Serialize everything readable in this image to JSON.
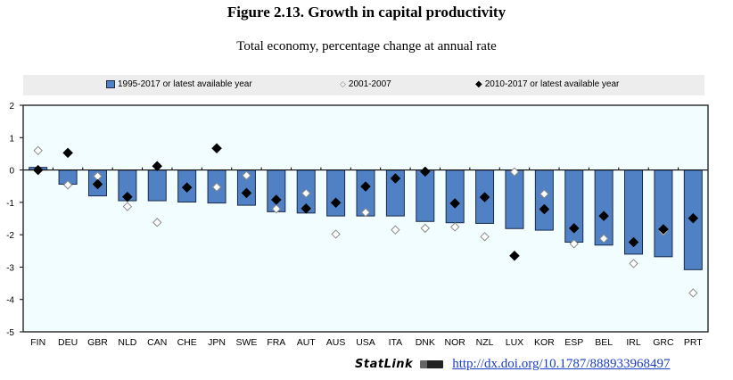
{
  "chart_data": {
    "type": "bar",
    "title": "Figure 2.13. Growth in capital productivity",
    "subtitle": "Total economy, percentage change at annual rate",
    "xlabel": "",
    "ylabel": "",
    "ylim": [
      -5,
      2
    ],
    "yticks": [
      2,
      1,
      0,
      -1,
      -2,
      -3,
      -4,
      -5
    ],
    "grid": false,
    "legend_position": "top",
    "categories": [
      "FIN",
      "DEU",
      "GBR",
      "NLD",
      "CAN",
      "CHE",
      "JPN",
      "SWE",
      "FRA",
      "AUT",
      "AUS",
      "USA",
      "ITA",
      "DNK",
      "NOR",
      "NZL",
      "LUX",
      "KOR",
      "ESP",
      "BEL",
      "IRL",
      "GRC",
      "PRT"
    ],
    "series": [
      {
        "name": "1995-2017 or latest available year",
        "kind": "bar",
        "color": "#4f81c4",
        "values": [
          0.08,
          -0.44,
          -0.8,
          -0.95,
          -0.95,
          -0.99,
          -1.02,
          -1.09,
          -1.29,
          -1.33,
          -1.42,
          -1.42,
          -1.42,
          -1.59,
          -1.63,
          -1.65,
          -1.81,
          -1.86,
          -2.23,
          -2.32,
          -2.6,
          -2.68,
          -3.08
        ]
      },
      {
        "name": "2001-2007",
        "kind": "open-diamond",
        "color": "#ffffff",
        "values": [
          0.6,
          -0.46,
          -0.19,
          -1.13,
          -1.62,
          null,
          -0.53,
          -0.17,
          -1.2,
          -0.72,
          -1.98,
          -1.31,
          -1.85,
          -1.8,
          -1.76,
          -2.06,
          -0.06,
          -0.74,
          -2.28,
          -2.12,
          -2.89,
          -1.9,
          -3.8
        ]
      },
      {
        "name": "2010-2017 or latest available year",
        "kind": "filled-diamond",
        "color": "#000000",
        "values": [
          0.0,
          0.53,
          -0.44,
          -0.83,
          0.12,
          -0.54,
          0.67,
          -0.71,
          -0.92,
          -1.19,
          -1.01,
          -0.51,
          -0.26,
          -0.05,
          -1.03,
          -0.84,
          -2.65,
          -1.21,
          -1.8,
          -1.42,
          -2.23,
          -1.83,
          -1.49
        ]
      }
    ]
  },
  "footer": {
    "statlink_label": "StatLink",
    "doi_link": "http://dx.doi.org/10.1787/888933968497"
  }
}
